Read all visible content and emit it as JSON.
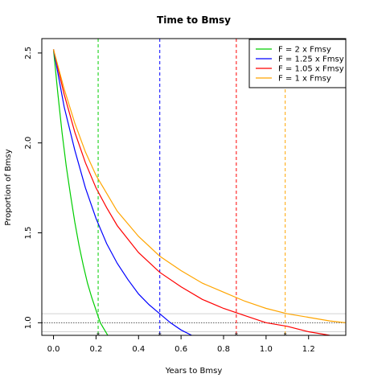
{
  "chart_data": {
    "type": "line",
    "title": "Time to Bmsy",
    "xlabel": "Years to Bmsy",
    "ylabel": "Proportion of Bmsy",
    "xlim": [
      -0.055,
      1.375
    ],
    "ylim": [
      0.93,
      2.58
    ],
    "x_ticks": [
      "0.0",
      "0.2",
      "0.4",
      "0.6",
      "0.8",
      "1.0",
      "1.2"
    ],
    "x_tick_values": [
      0.0,
      0.2,
      0.4,
      0.6,
      0.8,
      1.0,
      1.2
    ],
    "y_ticks": [
      "1.0",
      "1.5",
      "2.0",
      "2.5"
    ],
    "y_tick_values": [
      1.0,
      1.5,
      2.0,
      2.5
    ],
    "legend_position": "top-right",
    "reference_lines": {
      "target": 1.0,
      "band": [
        0.95,
        1.05
      ]
    },
    "series": [
      {
        "name": "F = 2 x Fmsy",
        "color": "#00cd00",
        "time_to_bmsy": 0.21,
        "x": [
          0.0,
          0.02,
          0.04,
          0.06,
          0.08,
          0.1,
          0.12,
          0.14,
          0.16,
          0.18,
          0.2,
          0.22,
          0.24,
          0.26,
          0.28,
          0.3
        ],
        "y": [
          2.52,
          2.28,
          2.06,
          1.87,
          1.71,
          1.56,
          1.43,
          1.32,
          1.22,
          1.14,
          1.07,
          1.0,
          0.96,
          0.92,
          0.88,
          0.85
        ]
      },
      {
        "name": "F = 1.25 x Fmsy",
        "color": "#0000ff",
        "time_to_bmsy": 0.5,
        "x": [
          0.0,
          0.05,
          0.1,
          0.15,
          0.2,
          0.25,
          0.3,
          0.35,
          0.4,
          0.45,
          0.5,
          0.55,
          0.6,
          0.65,
          0.7,
          0.75,
          0.8,
          0.85
        ],
        "y": [
          2.52,
          2.2,
          1.96,
          1.75,
          1.58,
          1.44,
          1.33,
          1.24,
          1.16,
          1.1,
          1.05,
          1.0,
          0.96,
          0.93,
          0.9,
          0.87,
          0.85,
          0.83
        ]
      },
      {
        "name": "F = 1.05 x Fmsy",
        "color": "#ff0000",
        "time_to_bmsy": 0.86,
        "x": [
          0.0,
          0.05,
          0.1,
          0.15,
          0.2,
          0.25,
          0.3,
          0.4,
          0.5,
          0.6,
          0.7,
          0.8,
          0.9,
          1.0,
          1.1,
          1.2,
          1.3,
          1.375
        ],
        "y": [
          2.52,
          2.27,
          2.06,
          1.89,
          1.75,
          1.64,
          1.54,
          1.39,
          1.28,
          1.2,
          1.13,
          1.08,
          1.04,
          1.0,
          0.98,
          0.95,
          0.93,
          0.92
        ]
      },
      {
        "name": "F = 1 x Fmsy",
        "color": "#ffa500",
        "time_to_bmsy": 1.09,
        "x": [
          0.0,
          0.05,
          0.1,
          0.15,
          0.2,
          0.25,
          0.3,
          0.4,
          0.5,
          0.6,
          0.7,
          0.8,
          0.9,
          1.0,
          1.1,
          1.2,
          1.3,
          1.375
        ],
        "y": [
          2.52,
          2.3,
          2.11,
          1.95,
          1.82,
          1.72,
          1.62,
          1.48,
          1.37,
          1.29,
          1.22,
          1.17,
          1.12,
          1.08,
          1.05,
          1.03,
          1.01,
          1.0
        ]
      }
    ]
  }
}
